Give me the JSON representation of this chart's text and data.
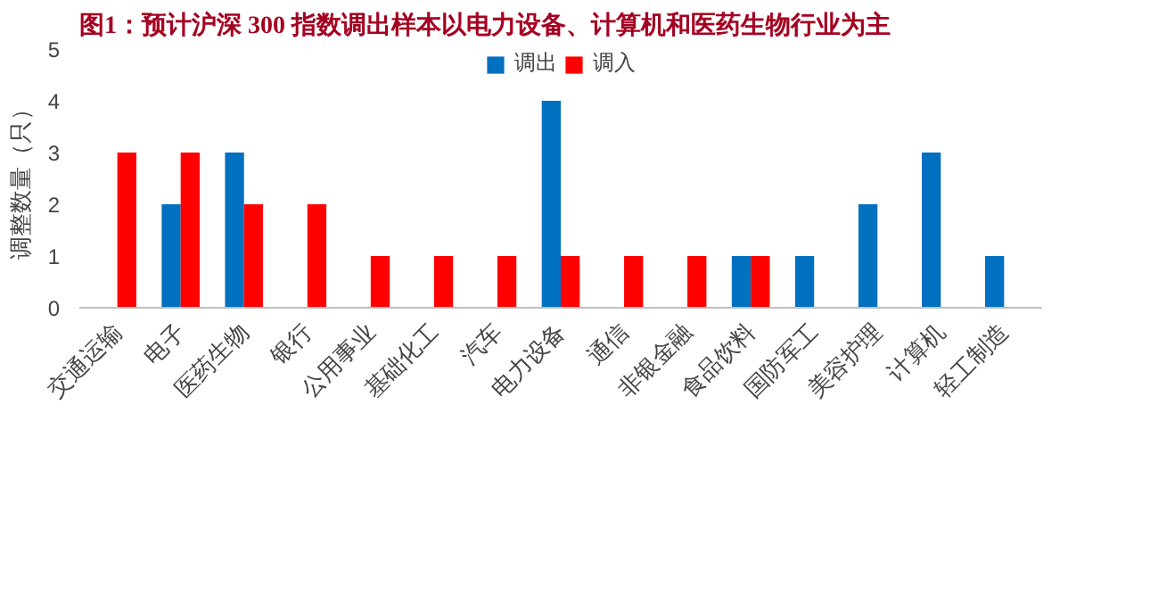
{
  "chart_data": {
    "type": "bar",
    "title": "图1：预计沪深 300 指数调出样本以电力设备、计算机和医药生物行业为主",
    "ylabel": "调整数量（只）",
    "categories": [
      "交通运输",
      "电子",
      "医药生物",
      "银行",
      "公用事业",
      "基础化工",
      "汽车",
      "电力设备",
      "通信",
      "非银金融",
      "食品饮料",
      "国防军工",
      "美容护理",
      "计算机",
      "轻工制造"
    ],
    "series": [
      {
        "name": "调出",
        "color": "#0070c0",
        "values": [
          null,
          2,
          3,
          null,
          null,
          null,
          null,
          4,
          null,
          null,
          1,
          1,
          2,
          3,
          1
        ]
      },
      {
        "name": "调入",
        "color": "#ff0000",
        "values": [
          3,
          3,
          2,
          2,
          1,
          1,
          1,
          1,
          1,
          1,
          1,
          null,
          null,
          null,
          null
        ]
      }
    ],
    "ylim": [
      0,
      5
    ],
    "yticks": [
      0,
      1,
      2,
      3,
      4,
      5
    ],
    "grid": false,
    "legend": "top"
  }
}
